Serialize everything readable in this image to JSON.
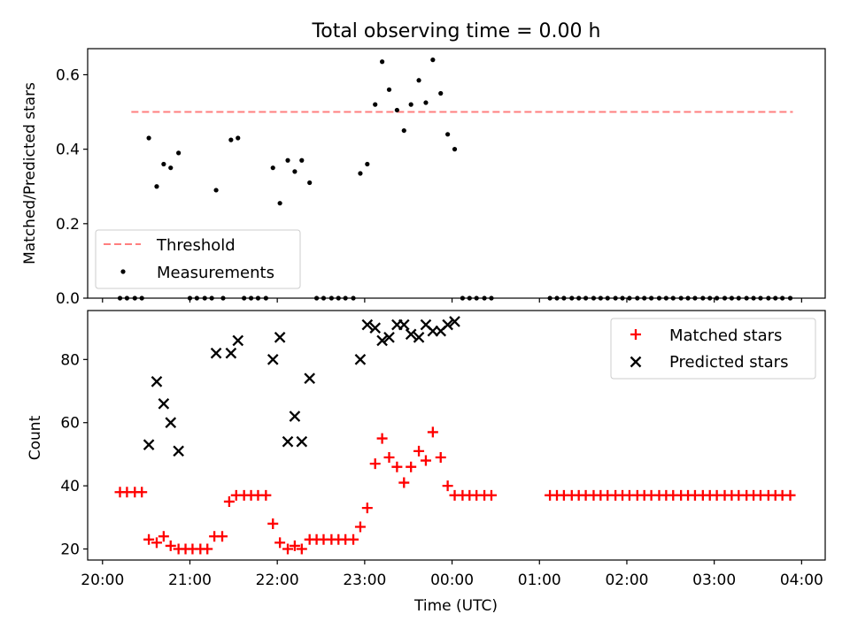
{
  "chart_data": [
    {
      "type": "scatter",
      "title": "Total observing time = 0.00 h",
      "ylabel": "Matched/Predicted stars",
      "xlabel": "",
      "ylim": [
        0,
        0.67
      ],
      "yticks": [
        "0.0",
        "0.2",
        "0.4",
        "0.6"
      ],
      "grid": false,
      "legend_position": "lower-left",
      "threshold": {
        "name": "Threshold",
        "value": 0.5,
        "x_start_h": 20.33,
        "x_end_h": 27.9,
        "color": "#ff7f7f"
      },
      "series": [
        {
          "name": "Measurements",
          "color": "#000000",
          "x_h": [
            20.2,
            20.28,
            20.37,
            20.45,
            20.53,
            20.62,
            20.7,
            20.78,
            20.87,
            21.0,
            21.08,
            21.17,
            21.25,
            21.3,
            21.38,
            21.47,
            21.55,
            21.62,
            21.7,
            21.78,
            21.87,
            21.95,
            22.03,
            22.12,
            22.2,
            22.28,
            22.37,
            22.45,
            22.53,
            22.62,
            22.7,
            22.78,
            22.87,
            22.95,
            23.03,
            23.12,
            23.2,
            23.28,
            23.37,
            23.45,
            23.53,
            23.62,
            23.7,
            23.78,
            23.87,
            23.95,
            24.03,
            24.12,
            24.2,
            24.28,
            24.37,
            24.45,
            25.12,
            25.2,
            25.28,
            25.37,
            25.45,
            25.53,
            25.62,
            25.7,
            25.78,
            25.87,
            25.95,
            26.03,
            26.12,
            26.2,
            26.28,
            26.37,
            26.45,
            26.53,
            26.62,
            26.7,
            26.78,
            26.87,
            26.95,
            27.03,
            27.12,
            27.2,
            27.28,
            27.37,
            27.45,
            27.53,
            27.62,
            27.7,
            27.78,
            27.87
          ],
          "y": [
            0,
            0,
            0,
            0,
            0.43,
            0.3,
            0.36,
            0.35,
            0.39,
            0,
            0,
            0,
            0,
            0.29,
            0,
            0.425,
            0.43,
            0,
            0,
            0,
            0,
            0.35,
            0.255,
            0.37,
            0.34,
            0.37,
            0.31,
            0,
            0,
            0,
            0,
            0,
            0,
            0.335,
            0.36,
            0.52,
            0.635,
            0.56,
            0.505,
            0.45,
            0.52,
            0.585,
            0.525,
            0.64,
            0.55,
            0.44,
            0.4,
            0,
            0,
            0,
            0,
            0,
            0,
            0,
            0,
            0,
            0,
            0,
            0,
            0,
            0,
            0,
            0,
            0,
            0,
            0,
            0,
            0,
            0,
            0,
            0,
            0,
            0,
            0,
            0,
            0,
            0,
            0,
            0,
            0,
            0,
            0,
            0,
            0,
            0,
            0
          ]
        }
      ]
    },
    {
      "type": "scatter",
      "title": "",
      "ylabel": "Count",
      "xlabel": "Time (UTC)",
      "xlim_h": [
        19.83,
        28.27
      ],
      "ylim": [
        16.5,
        95.5
      ],
      "xticks": [
        "20:00",
        "21:00",
        "22:00",
        "23:00",
        "00:00",
        "01:00",
        "02:00",
        "03:00",
        "04:00"
      ],
      "xtick_values_h": [
        20,
        21,
        22,
        23,
        24,
        25,
        26,
        27,
        28
      ],
      "yticks": [
        "20",
        "40",
        "60",
        "80"
      ],
      "ytick_values": [
        20,
        40,
        60,
        80
      ],
      "grid": false,
      "legend_position": "top-right",
      "series": [
        {
          "name": "Matched stars",
          "marker": "+",
          "color": "#ff0000",
          "x_h": [
            20.2,
            20.28,
            20.37,
            20.45,
            20.53,
            20.62,
            20.7,
            20.78,
            20.87,
            20.95,
            21.03,
            21.12,
            21.2,
            21.28,
            21.37,
            21.45,
            21.53,
            21.62,
            21.7,
            21.78,
            21.87,
            21.95,
            22.03,
            22.12,
            22.2,
            22.28,
            22.37,
            22.45,
            22.53,
            22.62,
            22.7,
            22.78,
            22.87,
            22.95,
            23.03,
            23.12,
            23.2,
            23.28,
            23.37,
            23.45,
            23.53,
            23.62,
            23.7,
            23.78,
            23.87,
            23.95,
            24.03,
            24.12,
            24.2,
            24.28,
            24.37,
            24.45,
            25.12,
            25.2,
            25.28,
            25.37,
            25.45,
            25.53,
            25.62,
            25.7,
            25.78,
            25.87,
            25.95,
            26.03,
            26.12,
            26.2,
            26.28,
            26.37,
            26.45,
            26.53,
            26.62,
            26.7,
            26.78,
            26.87,
            26.95,
            27.03,
            27.12,
            27.2,
            27.28,
            27.37,
            27.45,
            27.53,
            27.62,
            27.7,
            27.78,
            27.87
          ],
          "y": [
            38,
            38,
            38,
            38,
            23,
            22,
            24,
            21,
            20,
            20,
            20,
            20,
            20,
            24,
            24,
            35,
            37,
            37,
            37,
            37,
            37,
            28,
            22,
            20,
            21,
            20,
            23,
            23,
            23,
            23,
            23,
            23,
            23,
            27,
            33,
            47,
            55,
            49,
            46,
            41,
            46,
            51,
            48,
            57,
            49,
            40,
            37,
            37,
            37,
            37,
            37,
            37,
            37,
            37,
            37,
            37,
            37,
            37,
            37,
            37,
            37,
            37,
            37,
            37,
            37,
            37,
            37,
            37,
            37,
            37,
            37,
            37,
            37,
            37,
            37,
            37,
            37,
            37,
            37,
            37,
            37,
            37,
            37,
            37,
            37,
            37
          ]
        },
        {
          "name": "Predicted stars",
          "marker": "x",
          "color": "#000000",
          "x_h": [
            20.53,
            20.62,
            20.7,
            20.78,
            20.87,
            21.3,
            21.47,
            21.55,
            21.95,
            22.03,
            22.12,
            22.2,
            22.28,
            22.37,
            22.95,
            23.03,
            23.12,
            23.2,
            23.28,
            23.37,
            23.45,
            23.53,
            23.62,
            23.7,
            23.78,
            23.87,
            23.95,
            24.03
          ],
          "y": [
            53,
            73,
            66,
            60,
            51,
            82,
            82,
            86,
            80,
            87,
            54,
            62,
            54,
            74,
            80,
            91,
            90,
            86,
            87,
            91,
            91,
            88,
            87,
            91,
            89,
            89,
            91,
            92
          ]
        }
      ]
    }
  ]
}
